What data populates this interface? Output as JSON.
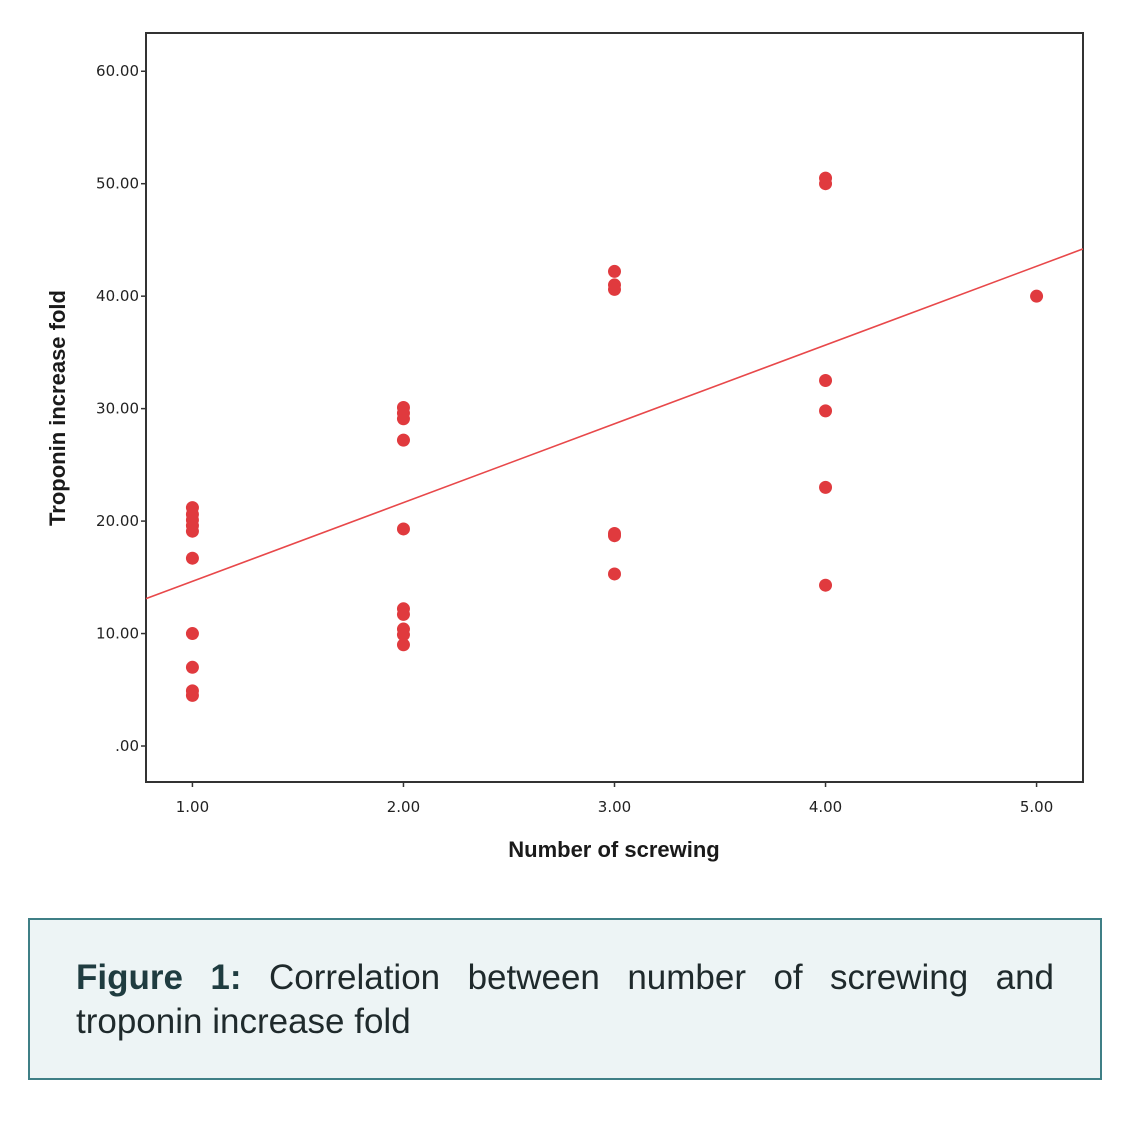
{
  "chart_data": {
    "type": "scatter",
    "xlabel": "Number of screwing",
    "ylabel": "Troponin increase fold",
    "xlim": [
      0.78,
      5.22
    ],
    "ylim": [
      -3.2,
      63.4
    ],
    "x_ticks": [
      1,
      2,
      3,
      4,
      5
    ],
    "x_tick_labels": [
      "1.00",
      "2.00",
      "3.00",
      "4.00",
      "5.00"
    ],
    "y_ticks": [
      0,
      10,
      20,
      30,
      40,
      50,
      60
    ],
    "y_tick_labels": [
      ".00",
      "10.00",
      "20.00",
      "30.00",
      "40.00",
      "50.00",
      "60.00"
    ],
    "grid": false,
    "point_color": "#e03a3e",
    "points": [
      {
        "x": 1,
        "y": 21.2
      },
      {
        "x": 1,
        "y": 20.6
      },
      {
        "x": 1,
        "y": 20.1
      },
      {
        "x": 1,
        "y": 19.6
      },
      {
        "x": 1,
        "y": 19.1
      },
      {
        "x": 1,
        "y": 16.7
      },
      {
        "x": 1,
        "y": 10.0
      },
      {
        "x": 1,
        "y": 7.0
      },
      {
        "x": 1,
        "y": 4.9
      },
      {
        "x": 1,
        "y": 4.5
      },
      {
        "x": 2,
        "y": 30.1
      },
      {
        "x": 2,
        "y": 29.6
      },
      {
        "x": 2,
        "y": 29.1
      },
      {
        "x": 2,
        "y": 27.2
      },
      {
        "x": 2,
        "y": 19.3
      },
      {
        "x": 2,
        "y": 12.2
      },
      {
        "x": 2,
        "y": 11.7
      },
      {
        "x": 2,
        "y": 10.4
      },
      {
        "x": 2,
        "y": 9.9
      },
      {
        "x": 2,
        "y": 9.0
      },
      {
        "x": 3,
        "y": 42.2
      },
      {
        "x": 3,
        "y": 41.0
      },
      {
        "x": 3,
        "y": 40.6
      },
      {
        "x": 3,
        "y": 18.9
      },
      {
        "x": 3,
        "y": 18.7
      },
      {
        "x": 3,
        "y": 15.3
      },
      {
        "x": 4,
        "y": 50.5
      },
      {
        "x": 4,
        "y": 50.0
      },
      {
        "x": 4,
        "y": 32.5
      },
      {
        "x": 4,
        "y": 29.8
      },
      {
        "x": 4,
        "y": 23.0
      },
      {
        "x": 4,
        "y": 14.3
      },
      {
        "x": 5,
        "y": 40.0
      }
    ],
    "fit_line": {
      "color": "#e8484a",
      "x": [
        0.78,
        5.22
      ],
      "y": [
        13.1,
        44.2
      ]
    }
  },
  "caption": {
    "label": "Figure 1:",
    "text": " Correlation between number of screwing and troponin increase fold"
  }
}
